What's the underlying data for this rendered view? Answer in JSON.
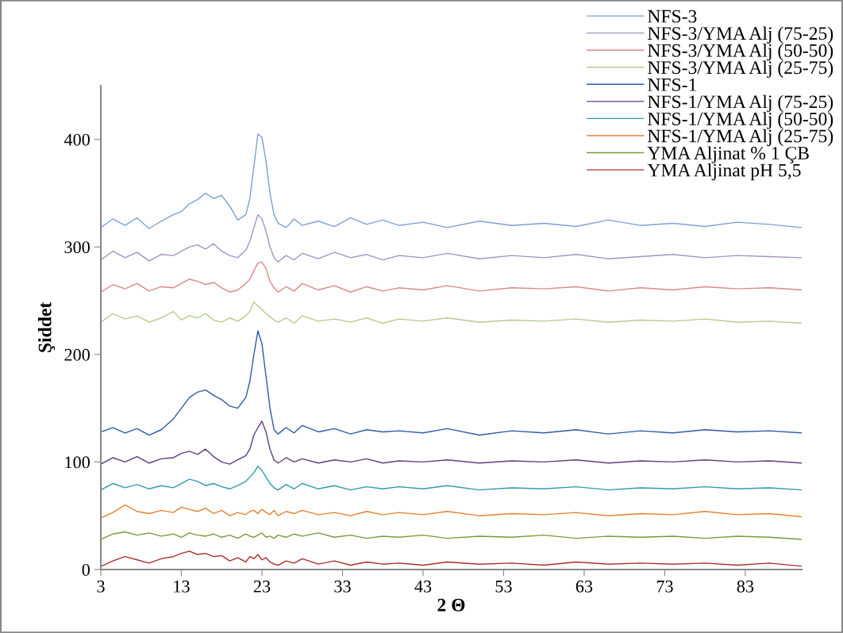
{
  "chart_data": {
    "type": "line",
    "xlabel": "2 Θ",
    "ylabel": "Şiddet",
    "x": [
      3,
      4.5,
      6,
      7.5,
      9,
      10.5,
      12,
      13,
      14,
      15,
      16,
      17,
      18,
      19,
      20,
      21,
      21.5,
      22,
      22.5,
      23,
      23.5,
      24,
      24.5,
      25,
      26,
      27,
      28,
      30,
      32,
      34,
      36,
      38,
      40,
      43,
      46,
      50,
      54,
      58,
      62,
      66,
      70,
      74,
      78,
      82,
      86,
      90
    ],
    "xlim": [
      3,
      90
    ],
    "xticks": [
      3,
      13,
      23,
      33,
      43,
      53,
      63,
      73,
      83
    ],
    "ylim": [
      0,
      450
    ],
    "yticks": [
      0,
      100,
      200,
      300,
      400
    ],
    "grid": false,
    "legend": "top right",
    "marker": "none",
    "line_style": "solid",
    "series": [
      {
        "name": "NFS-3",
        "color": "#7f9fd3",
        "values": [
          318,
          326,
          320,
          327,
          317,
          324,
          330,
          333,
          340,
          344,
          350,
          345,
          348,
          338,
          325,
          330,
          345,
          375,
          405,
          402,
          380,
          350,
          330,
          322,
          318,
          326,
          320,
          324,
          319,
          327,
          321,
          325,
          320,
          323,
          318,
          324,
          320,
          322,
          319,
          325,
          320,
          322,
          319,
          323,
          321,
          318
        ]
      },
      {
        "name": "NFS-3/YMA Alj (75-25)",
        "color": "#a592c0",
        "values": [
          288,
          296,
          290,
          295,
          287,
          293,
          292,
          296,
          300,
          302,
          298,
          303,
          296,
          292,
          290,
          297,
          305,
          318,
          330,
          326,
          315,
          300,
          290,
          286,
          292,
          288,
          294,
          289,
          295,
          290,
          293,
          288,
          292,
          290,
          294,
          289,
          292,
          290,
          293,
          289,
          291,
          293,
          290,
          292,
          291,
          290
        ]
      },
      {
        "name": "NFS-3/YMA Alj (50-50)",
        "color": "#d98a88",
        "values": [
          258,
          265,
          261,
          266,
          259,
          263,
          262,
          266,
          270,
          268,
          265,
          267,
          262,
          258,
          260,
          266,
          270,
          278,
          285,
          286,
          280,
          268,
          262,
          258,
          263,
          259,
          266,
          260,
          264,
          258,
          263,
          259,
          262,
          260,
          264,
          259,
          262,
          261,
          263,
          259,
          262,
          260,
          263,
          261,
          262,
          260
        ]
      },
      {
        "name": "NFS-3/YMA Alj (25-75)",
        "color": "#b5cc8e",
        "values": [
          230,
          238,
          233,
          236,
          230,
          234,
          240,
          232,
          236,
          234,
          238,
          232,
          230,
          234,
          231,
          236,
          240,
          249,
          245,
          242,
          238,
          235,
          232,
          230,
          234,
          229,
          236,
          231,
          233,
          230,
          234,
          229,
          233,
          231,
          234,
          230,
          232,
          231,
          233,
          230,
          232,
          231,
          233,
          230,
          231,
          229
        ]
      },
      {
        "name": "NFS-1",
        "color": "#2e5aa6",
        "values": [
          128,
          132,
          127,
          131,
          125,
          130,
          140,
          150,
          160,
          165,
          167,
          162,
          158,
          152,
          150,
          160,
          175,
          200,
          222,
          210,
          180,
          150,
          130,
          126,
          132,
          127,
          134,
          128,
          131,
          126,
          130,
          128,
          129,
          127,
          131,
          125,
          129,
          127,
          130,
          126,
          129,
          127,
          130,
          128,
          129,
          127
        ]
      },
      {
        "name": "NFS-1/YMA Alj (75-25)",
        "color": "#5b3e84",
        "values": [
          98,
          104,
          100,
          105,
          99,
          103,
          104,
          108,
          110,
          107,
          112,
          105,
          100,
          98,
          102,
          106,
          112,
          125,
          132,
          138,
          128,
          112,
          102,
          99,
          104,
          100,
          103,
          99,
          102,
          100,
          103,
          99,
          101,
          100,
          102,
          99,
          101,
          100,
          102,
          99,
          101,
          100,
          102,
          100,
          101,
          99
        ]
      },
      {
        "name": "NFS-1/YMA Alj (50-50)",
        "color": "#2e9aaf",
        "values": [
          74,
          80,
          76,
          79,
          75,
          78,
          76,
          80,
          84,
          82,
          78,
          80,
          77,
          75,
          78,
          82,
          86,
          90,
          96,
          92,
          86,
          80,
          76,
          74,
          79,
          75,
          80,
          75,
          78,
          74,
          77,
          75,
          77,
          75,
          78,
          74,
          76,
          75,
          77,
          74,
          76,
          75,
          77,
          75,
          76,
          74
        ]
      },
      {
        "name": "NFS-1/YMA Alj (25-75)",
        "color": "#e8802c",
        "values": [
          48,
          53,
          60,
          54,
          52,
          55,
          53,
          58,
          56,
          54,
          57,
          52,
          55,
          50,
          53,
          51,
          54,
          55,
          52,
          56,
          53,
          51,
          55,
          50,
          54,
          52,
          55,
          51,
          53,
          50,
          54,
          51,
          53,
          51,
          54,
          50,
          52,
          51,
          53,
          50,
          52,
          51,
          54,
          51,
          52,
          49
        ]
      },
      {
        "name": "YMA Aljinat % 1 ÇB",
        "color": "#7a9a3a",
        "values": [
          28,
          33,
          35,
          32,
          34,
          31,
          33,
          30,
          34,
          32,
          31,
          33,
          30,
          32,
          29,
          33,
          31,
          30,
          32,
          34,
          30,
          31,
          29,
          32,
          30,
          33,
          31,
          34,
          30,
          32,
          29,
          31,
          30,
          32,
          29,
          31,
          30,
          32,
          29,
          31,
          30,
          31,
          29,
          31,
          30,
          28
        ]
      },
      {
        "name": "YMA Aljinat pH 5,5",
        "color": "#a8302e",
        "values": [
          3,
          8,
          12,
          9,
          6,
          10,
          12,
          15,
          17,
          14,
          15,
          12,
          13,
          8,
          11,
          7,
          12,
          10,
          14,
          9,
          11,
          7,
          5,
          4,
          8,
          6,
          10,
          5,
          8,
          4,
          7,
          5,
          6,
          4,
          7,
          5,
          6,
          4,
          7,
          5,
          6,
          5,
          6,
          4,
          6,
          3
        ]
      }
    ]
  }
}
